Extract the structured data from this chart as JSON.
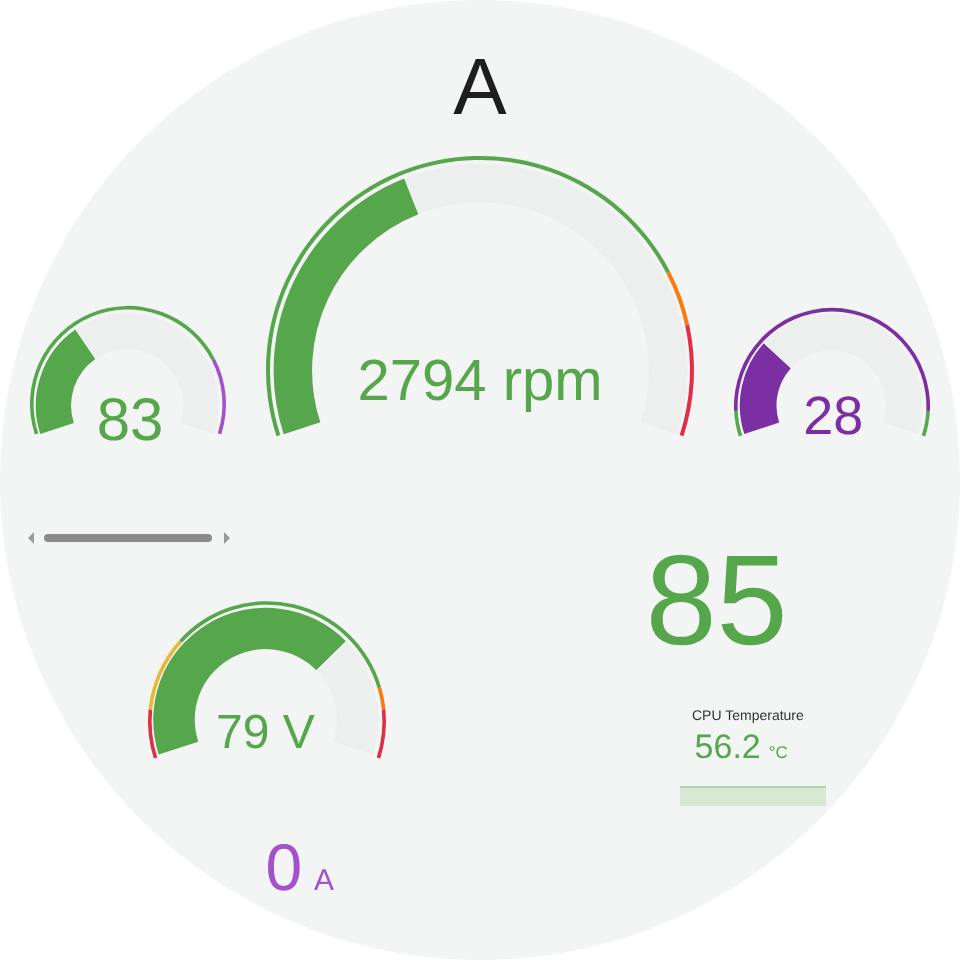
{
  "chart_data": [
    {
      "type": "other",
      "title": "A"
    },
    {
      "type": "donut",
      "values": [
        79,
        21
      ],
      "colors": [
        "#56a64b",
        "#a352cc"
      ]
    },
    {
      "type": "donut",
      "annotations": [
        "83"
      ],
      "values": [
        34,
        66
      ],
      "colors": [
        "#56a64b",
        "#edefef"
      ]
    },
    {
      "type": "donut",
      "values": [
        79,
        7,
        14
      ],
      "colors": [
        "#56a64b",
        "#ff780a",
        "#e02f44"
      ]
    },
    {
      "type": "donut",
      "annotations": [
        "2794 rpm"
      ],
      "values": [
        40,
        60
      ],
      "colors": [
        "#56a64b",
        "#edefef"
      ]
    },
    {
      "type": "donut",
      "values": [
        7,
        86,
        7
      ],
      "colors": [
        "#56a64b",
        "#7c2ea3",
        "#56a64b"
      ]
    },
    {
      "type": "donut",
      "annotations": [
        "28"
      ],
      "values": [
        28,
        72
      ],
      "colors": [
        "#7c2ea3",
        "#edefef"
      ]
    },
    {
      "type": "other",
      "annotations": [
        "85"
      ],
      "color": "#56a64b"
    },
    {
      "type": "donut",
      "values": [
        11,
        17,
        56,
        5,
        11
      ],
      "colors": [
        "#e02f44",
        "#eab839",
        "#56a64b",
        "#ff780a",
        "#e02f44"
      ]
    },
    {
      "type": "donut",
      "annotations": [
        "79 V"
      ],
      "values": [
        71,
        29
      ],
      "colors": [
        "#56a64b",
        "#edefef"
      ]
    },
    {
      "type": "other",
      "annotations": [
        "0",
        "A"
      ],
      "color": "#a352cc"
    },
    {
      "type": "other",
      "title": "CPU Temperature",
      "annotations": [
        "56.2",
        "°C"
      ],
      "color": "#56a64b"
    }
  ]
}
